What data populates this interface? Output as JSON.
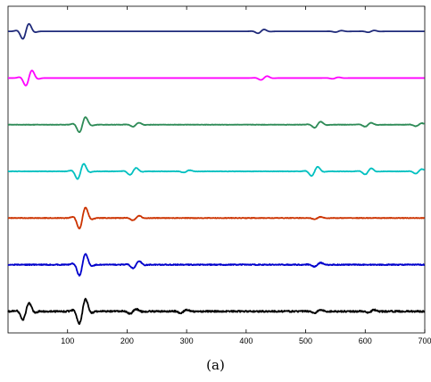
{
  "caption": "(a)",
  "chart_data": {
    "type": "line",
    "title": "",
    "xlabel": "",
    "ylabel": "",
    "xlim": [
      0,
      700
    ],
    "x_ticks": [
      100,
      200,
      300,
      400,
      500,
      600,
      700
    ],
    "y_ticks": [],
    "grid": false,
    "legend": "none",
    "series": [
      {
        "color": "#1f2a7a",
        "packets": [
          [
            30,
            1.0
          ],
          [
            425,
            0.25
          ],
          [
            555,
            0.1
          ],
          [
            610,
            0.12
          ]
        ],
        "noise": 0.0
      },
      {
        "color": "#ff00ff",
        "packets": [
          [
            35,
            1.0
          ],
          [
            430,
            0.25
          ],
          [
            550,
            0.1
          ]
        ],
        "noise": 0.0
      },
      {
        "color": "#2e8b57",
        "packets": [
          [
            125,
            1.0
          ],
          [
            215,
            0.25
          ],
          [
            520,
            0.4
          ],
          [
            605,
            0.25
          ],
          [
            690,
            0.2
          ]
        ],
        "noise": 0.02
      },
      {
        "color": "#00c0c0",
        "packets": [
          [
            122,
            1.0
          ],
          [
            210,
            0.45
          ],
          [
            300,
            0.15
          ],
          [
            515,
            0.6
          ],
          [
            605,
            0.4
          ],
          [
            690,
            0.3
          ]
        ],
        "noise": 0.02
      },
      {
        "color": "#cc3300",
        "packets": [
          [
            125,
            1.4
          ],
          [
            215,
            0.3
          ],
          [
            520,
            0.15
          ]
        ],
        "noise": 0.03
      },
      {
        "color": "#0000cc",
        "packets": [
          [
            125,
            1.4
          ],
          [
            215,
            0.45
          ],
          [
            520,
            0.25
          ]
        ],
        "noise": 0.05
      },
      {
        "color": "#000000",
        "packets": [
          [
            30,
            1.1
          ],
          [
            125,
            1.6
          ],
          [
            210,
            0.3
          ],
          [
            295,
            0.2
          ],
          [
            520,
            0.2
          ],
          [
            610,
            0.2
          ]
        ],
        "noise": 0.08
      }
    ]
  }
}
